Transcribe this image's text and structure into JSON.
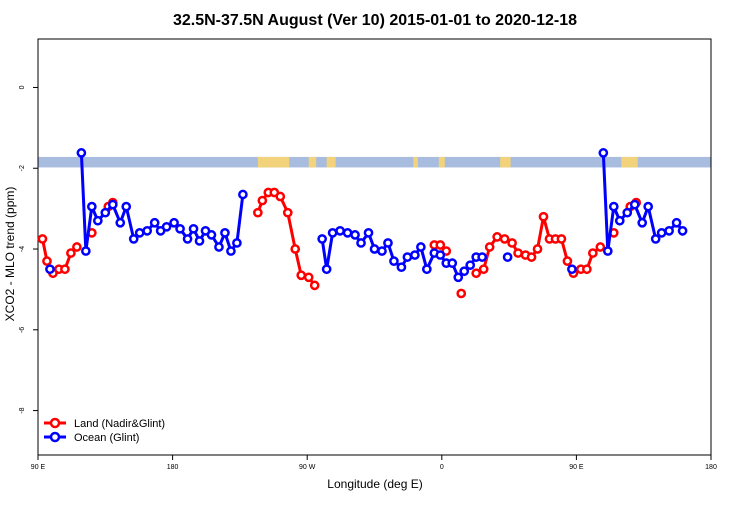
{
  "chart_data": {
    "type": "line",
    "title": "32.5N-37.5N August (Ver 10)   2015-01-01 to 2020-12-18",
    "xlabel": "Longitude (deg E)",
    "ylabel": "XCO2 - MLO trend (ppm)",
    "xlim": [
      90,
      540
    ],
    "ylim": [
      -9.1,
      1.2
    ],
    "x_ticks": [
      {
        "value": 90,
        "label": "90 E"
      },
      {
        "value": 180,
        "label": "180"
      },
      {
        "value": 270,
        "label": "90 W"
      },
      {
        "value": 360,
        "label": "0"
      },
      {
        "value": 450,
        "label": "90 E"
      },
      {
        "value": 540,
        "label": "180"
      }
    ],
    "y_ticks": [
      {
        "value": 0,
        "label": "0"
      },
      {
        "value": -2,
        "label": "-2"
      },
      {
        "value": -4,
        "label": "-4"
      },
      {
        "value": -6,
        "label": "-6"
      },
      {
        "value": -8,
        "label": "-8"
      }
    ],
    "land_mask_band": {
      "y_top": -1.72,
      "y_bottom": -1.98,
      "ocean_color": "#a8bce0",
      "land_color": "#f2d27a"
    },
    "legend_position": "bottom-left",
    "series": [
      {
        "name": "Land (Nadir&Glint)",
        "color": "#ff0000",
        "points": [
          [
            [
              93,
              -3.75
            ],
            [
              96,
              -4.3
            ],
            [
              100,
              -4.6
            ],
            [
              104,
              -4.5
            ],
            [
              108,
              -4.5
            ],
            [
              112,
              -4.1
            ],
            [
              116,
              -3.95
            ]
          ],
          [
            [
              126,
              -3.6
            ]
          ],
          [
            [
              137,
              -2.95
            ],
            [
              140,
              -2.85
            ]
          ],
          [
            [
              237,
              -3.1
            ],
            [
              240,
              -2.8
            ],
            [
              244,
              -2.6
            ],
            [
              248,
              -2.6
            ],
            [
              252,
              -2.7
            ],
            [
              257,
              -3.1
            ],
            [
              262,
              -4.0
            ],
            [
              266,
              -4.65
            ],
            [
              271,
              -4.7
            ],
            [
              275,
              -4.9
            ]
          ],
          [
            [
              355,
              -3.9
            ],
            [
              359,
              -3.9
            ],
            [
              363,
              -4.05
            ]
          ],
          [
            [
              373,
              -5.1
            ]
          ],
          [
            [
              383,
              -4.6
            ],
            [
              388,
              -4.5
            ],
            [
              392,
              -3.95
            ],
            [
              397,
              -3.7
            ],
            [
              402,
              -3.75
            ],
            [
              407,
              -3.85
            ],
            [
              411,
              -4.1
            ],
            [
              416,
              -4.15
            ],
            [
              420,
              -4.2
            ],
            [
              424,
              -4.0
            ],
            [
              428,
              -3.2
            ],
            [
              432,
              -3.75
            ],
            [
              436,
              -3.75
            ],
            [
              440,
              -3.75
            ],
            [
              444,
              -4.3
            ],
            [
              448,
              -4.6
            ],
            [
              453,
              -4.5
            ],
            [
              457,
              -4.5
            ],
            [
              461,
              -4.1
            ],
            [
              466,
              -3.95
            ]
          ],
          [
            [
              475,
              -3.6
            ]
          ],
          [
            [
              486,
              -2.95
            ],
            [
              490,
              -2.85
            ]
          ]
        ]
      },
      {
        "name": "Ocean (Glint)",
        "color": "#0000ff",
        "points": [
          [
            [
              98,
              -4.5
            ]
          ],
          [
            [
              119,
              -1.62
            ],
            [
              122,
              -4.05
            ],
            [
              126,
              -2.95
            ],
            [
              130,
              -3.3
            ],
            [
              135,
              -3.1
            ],
            [
              140,
              -2.9
            ],
            [
              145,
              -3.35
            ],
            [
              149,
              -2.95
            ],
            [
              154,
              -3.75
            ],
            [
              158,
              -3.6
            ],
            [
              163,
              -3.55
            ],
            [
              168,
              -3.35
            ],
            [
              172,
              -3.55
            ],
            [
              176,
              -3.45
            ],
            [
              181,
              -3.35
            ],
            [
              185,
              -3.5
            ],
            [
              190,
              -3.75
            ],
            [
              194,
              -3.5
            ],
            [
              198,
              -3.8
            ],
            [
              202,
              -3.55
            ],
            [
              206,
              -3.65
            ],
            [
              211,
              -3.95
            ],
            [
              215,
              -3.6
            ],
            [
              219,
              -4.05
            ],
            [
              223,
              -3.85
            ],
            [
              227,
              -2.65
            ]
          ],
          [
            [
              280,
              -3.75
            ],
            [
              283,
              -4.5
            ],
            [
              287,
              -3.6
            ],
            [
              292,
              -3.55
            ],
            [
              297,
              -3.6
            ],
            [
              302,
              -3.65
            ],
            [
              306,
              -3.85
            ],
            [
              311,
              -3.6
            ],
            [
              315,
              -4.0
            ],
            [
              320,
              -4.05
            ],
            [
              324,
              -3.85
            ],
            [
              328,
              -4.3
            ],
            [
              333,
              -4.45
            ],
            [
              337,
              -4.2
            ],
            [
              342,
              -4.15
            ],
            [
              346,
              -3.95
            ],
            [
              350,
              -4.5
            ],
            [
              355,
              -4.1
            ],
            [
              359,
              -4.15
            ],
            [
              363,
              -4.35
            ],
            [
              367,
              -4.35
            ],
            [
              371,
              -4.7
            ],
            [
              375,
              -4.55
            ],
            [
              379,
              -4.4
            ],
            [
              383,
              -4.2
            ],
            [
              387,
              -4.2
            ]
          ],
          [
            [
              404,
              -4.2
            ]
          ],
          [
            [
              447,
              -4.5
            ]
          ],
          [
            [
              468,
              -1.62
            ],
            [
              471,
              -4.05
            ],
            [
              475,
              -2.95
            ],
            [
              479,
              -3.3
            ],
            [
              484,
              -3.1
            ],
            [
              489,
              -2.9
            ],
            [
              494,
              -3.35
            ],
            [
              498,
              -2.95
            ],
            [
              503,
              -3.75
            ],
            [
              507,
              -3.6
            ],
            [
              512,
              -3.55
            ],
            [
              517,
              -3.35
            ],
            [
              521,
              -3.55
            ]
          ]
        ]
      }
    ]
  }
}
